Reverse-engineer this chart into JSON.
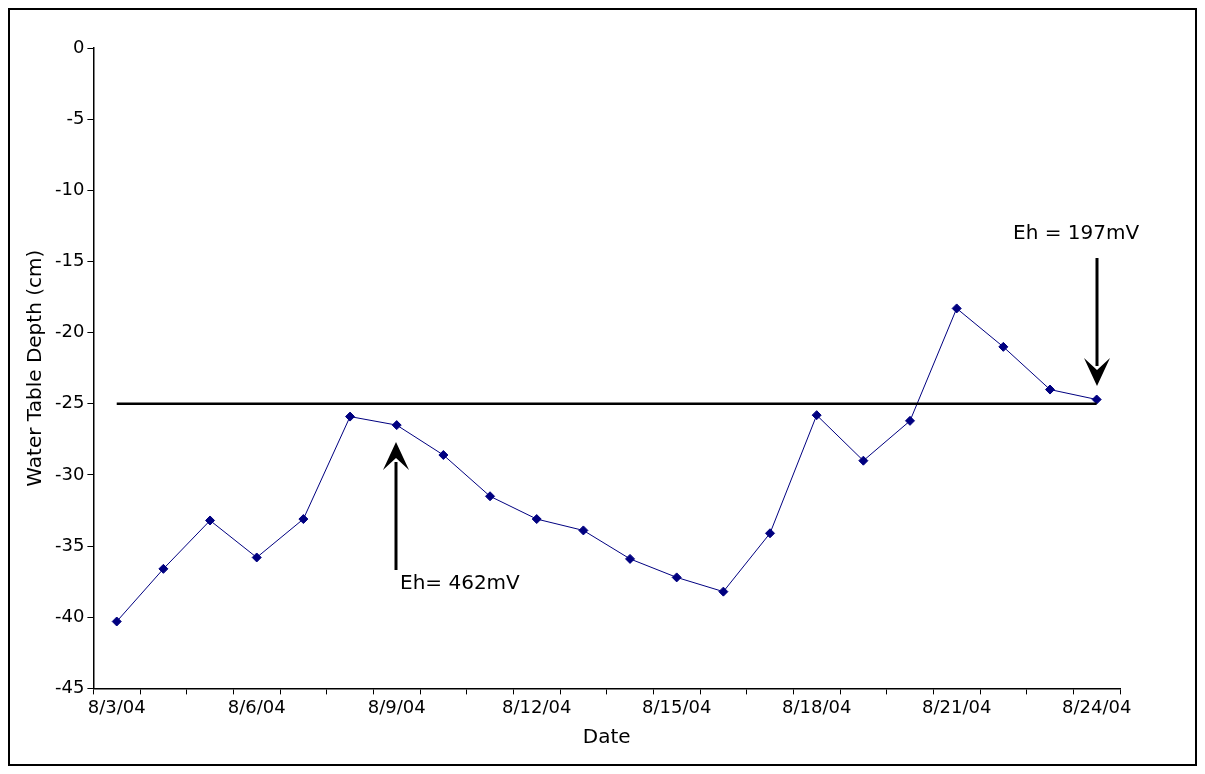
{
  "chart_data": {
    "type": "line",
    "xlabel": "Date",
    "ylabel": "Water Table Depth (cm)",
    "categories": [
      "8/3/04",
      null,
      null,
      "8/6/04",
      null,
      null,
      "8/9/04",
      null,
      null,
      "8/12/04",
      null,
      null,
      "8/15/04",
      null,
      null,
      "8/18/04",
      null,
      null,
      "8/21/04",
      null,
      null,
      "8/24/04"
    ],
    "series": [
      {
        "color": "#000080",
        "values": [
          -40.3,
          -36.6,
          -33.2,
          -35.8,
          -33.1,
          -25.9,
          -26.5,
          -28.6,
          -31.5,
          -33.1,
          -33.9,
          -35.9,
          -37.2,
          -38.2,
          -34.1,
          -25.8,
          -29.0,
          -26.2,
          -18.3,
          -21.0,
          -24.0,
          -24.7
        ]
      }
    ],
    "ylim": [
      -45,
      0
    ],
    "yticks": [
      -45,
      -40,
      -35,
      -30,
      -25,
      -20,
      -15,
      -10,
      -5,
      0
    ],
    "ref_lines": [
      {
        "axis": "y",
        "value": -25,
        "color": "#000000"
      }
    ],
    "annotations": [
      "Eh= 462mV",
      "Eh = 197mV"
    ],
    "marker": "diamond",
    "line_style": "solid",
    "grid": false,
    "legend": false
  }
}
